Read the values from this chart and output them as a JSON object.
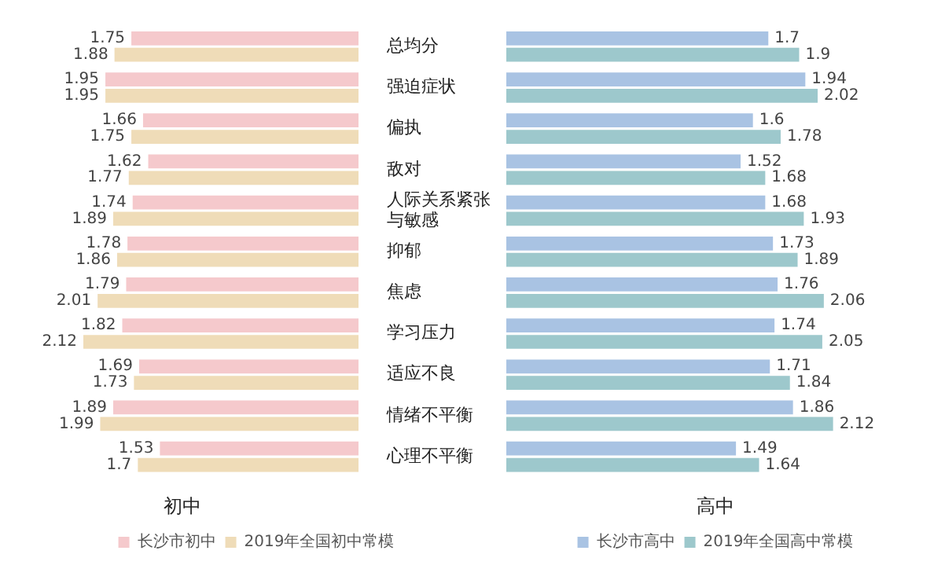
{
  "chart_data": [
    {
      "type": "bar",
      "orientation": "horizontal",
      "xlabel": "初中",
      "legend": "bottom",
      "data_labels": true,
      "tick_labels": "y",
      "grid": false,
      "categories": [
        "总均分",
        "强迫症状",
        "偏执",
        "敌对",
        "人际关系紧张与敏感",
        "抑郁",
        "焦虑",
        "学习压力",
        "适应不良",
        "情绪不平衡",
        "心理不平衡"
      ],
      "series": [
        {
          "name": "长沙市初中",
          "color": "#f5c9cc",
          "values": [
            1.75,
            1.95,
            1.66,
            1.62,
            1.74,
            1.78,
            1.79,
            1.82,
            1.69,
            1.89,
            1.53
          ]
        },
        {
          "name": "2019年全国初中常模",
          "color": "#efdcb8",
          "values": [
            1.88,
            1.95,
            1.75,
            1.77,
            1.89,
            1.86,
            2.01,
            2.12,
            1.73,
            1.99,
            1.7
          ]
        }
      ]
    },
    {
      "type": "bar",
      "orientation": "horizontal",
      "xlabel": "高中",
      "legend": "bottom",
      "data_labels": true,
      "tick_labels": false,
      "grid": false,
      "categories": [
        "总均分",
        "强迫症状",
        "偏执",
        "敌对",
        "人际关系紧张与敏感",
        "抑郁",
        "焦虑",
        "学习压力",
        "适应不良",
        "情绪不平衡",
        "心理不平衡"
      ],
      "series": [
        {
          "name": "长沙市高中",
          "color": "#a9c3e3",
          "values": [
            1.7,
            1.94,
            1.6,
            1.52,
            1.68,
            1.73,
            1.76,
            1.74,
            1.71,
            1.86,
            1.49
          ]
        },
        {
          "name": "2019年全国高中常模",
          "color": "#9dc8cc",
          "values": [
            1.9,
            2.02,
            1.78,
            1.68,
            1.93,
            1.89,
            2.06,
            2.05,
            1.84,
            2.12,
            1.64
          ]
        }
      ]
    }
  ]
}
